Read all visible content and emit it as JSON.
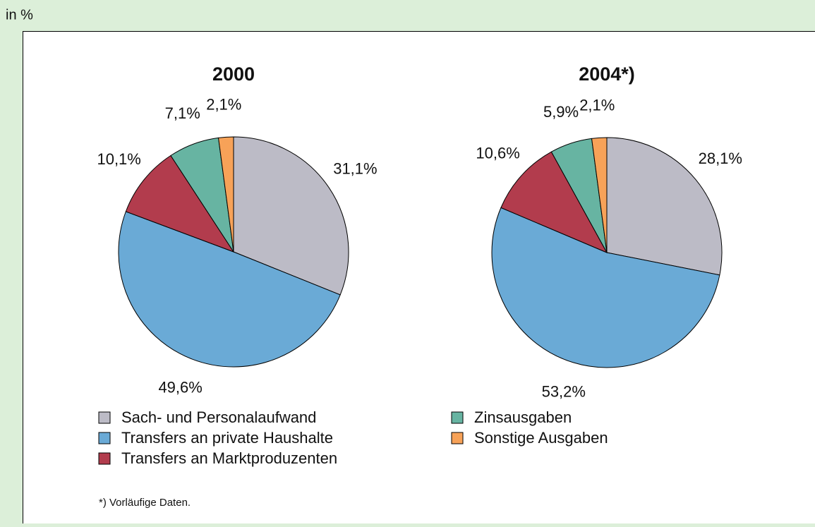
{
  "unit_label": "in %",
  "categories": [
    "Sach- und Personalaufwand",
    "Transfers an private Haushalte",
    "Transfers an Marktproduzenten",
    "Zinsausgaben",
    "Sonstige Ausgaben"
  ],
  "colors": [
    "#bcbbc6",
    "#6aaad6",
    "#b23c4d",
    "#67b4a2",
    "#f7a258"
  ],
  "chart_data": [
    {
      "type": "pie",
      "title": "2000",
      "values": [
        31.1,
        49.6,
        10.1,
        7.1,
        2.1
      ],
      "value_labels": [
        "31,1%",
        "49,6%",
        "10,1%",
        "7,1%",
        "2,1%"
      ]
    },
    {
      "type": "pie",
      "title": "2004*)",
      "values": [
        28.1,
        53.2,
        10.6,
        5.9,
        2.1
      ],
      "value_labels": [
        "28,1%",
        "53,2%",
        "10,6%",
        "5,9%",
        "2,1%"
      ]
    }
  ],
  "footnote": "*) Vorläufige Daten."
}
